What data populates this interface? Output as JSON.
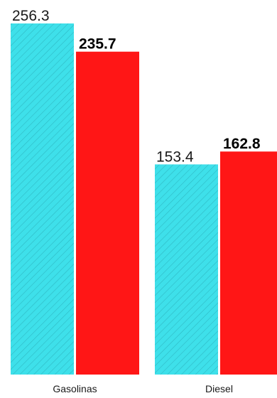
{
  "chart_data": {
    "type": "bar",
    "categories": [
      "Gasolinas",
      "Diesel"
    ],
    "series": [
      {
        "values": [
          256.3,
          153.4
        ],
        "color": "#3ee0ea",
        "pattern": "diagonal-hatch",
        "label_style": "regular"
      },
      {
        "values": [
          235.7,
          162.8
        ],
        "color": "#ff1616",
        "label_style": "bold"
      }
    ],
    "ylim": [
      0,
      256.3
    ],
    "grid": false,
    "legend": "none"
  }
}
